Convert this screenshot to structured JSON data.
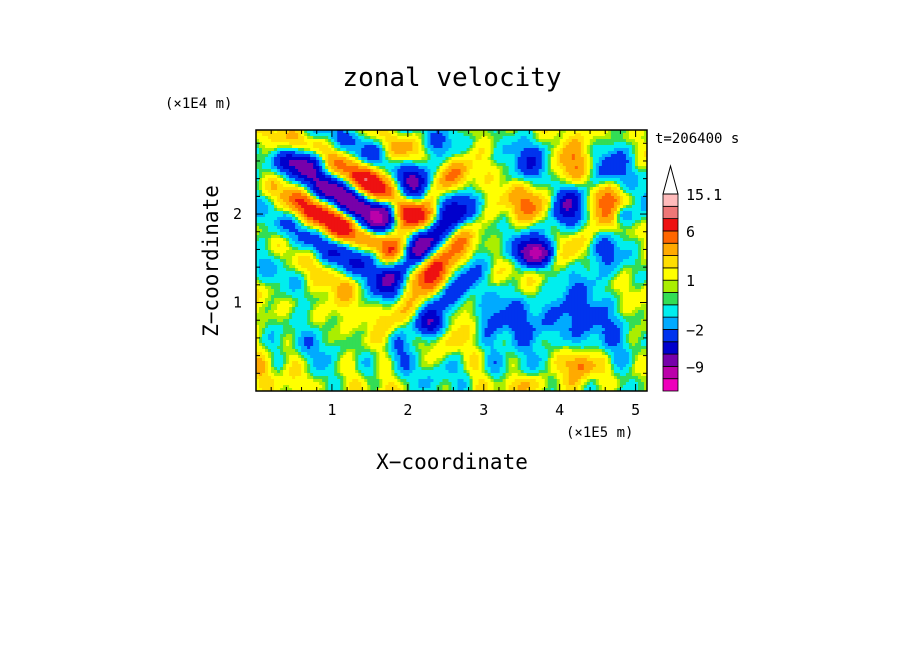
{
  "chart_data": {
    "type": "heatmap",
    "title": "zonal velocity",
    "xlabel": "X−coordinate",
    "ylabel": "Z−coordinate",
    "x_unit": "(×1E5 m)",
    "y_unit": "(×1E4 m)",
    "time_label": "t=206400 s",
    "xlim": [
      0,
      5.15
    ],
    "ylim": [
      0,
      2.95
    ],
    "x_ticks": [
      1,
      2,
      3,
      4,
      5
    ],
    "y_ticks": [
      1,
      2
    ],
    "colorbar": {
      "levels": [
        {
          "min": -15,
          "max": -12,
          "color": "#ee00bb"
        },
        {
          "min": -12,
          "max": -9,
          "color": "#bb00aa"
        },
        {
          "min": -9,
          "max": -6,
          "color": "#7700aa"
        },
        {
          "min": -6,
          "max": -4,
          "color": "#0000cc"
        },
        {
          "min": -4,
          "max": -2,
          "color": "#0033ee"
        },
        {
          "min": -2,
          "max": -1,
          "color": "#00aaff"
        },
        {
          "min": -1,
          "max": 0,
          "color": "#00eeee"
        },
        {
          "min": 0,
          "max": 0.5,
          "color": "#33dd55"
        },
        {
          "min": 0.5,
          "max": 1,
          "color": "#aaee00"
        },
        {
          "min": 1,
          "max": 2,
          "color": "#ffff00"
        },
        {
          "min": 2,
          "max": 3,
          "color": "#ffdd00"
        },
        {
          "min": 3,
          "max": 4.5,
          "color": "#ffaa00"
        },
        {
          "min": 4.5,
          "max": 6,
          "color": "#ff6600"
        },
        {
          "min": 6,
          "max": 9,
          "color": "#ee1111"
        },
        {
          "min": 9,
          "max": 12,
          "color": "#ee7777"
        },
        {
          "min": 12,
          "max": 15.1,
          "color": "#ffbbbb"
        }
      ],
      "labels": [
        {
          "text": "15.1",
          "value": 15.1
        },
        {
          "text": "6",
          "value": 6
        },
        {
          "text": "1",
          "value": 1
        },
        {
          "text": "−2",
          "value": -2
        },
        {
          "text": "−9",
          "value": -9
        }
      ]
    }
  }
}
